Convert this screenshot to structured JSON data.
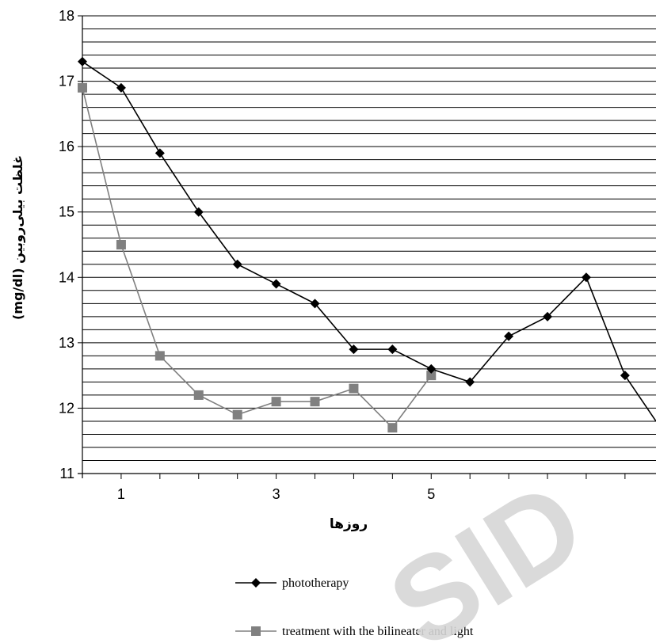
{
  "chart_data": {
    "type": "line",
    "xlabel": "روزها",
    "ylabel": "غلظت بیلی‌روبین (mg/dl)",
    "ylim": [
      11,
      18
    ],
    "yticks": [
      11,
      12,
      13,
      14,
      15,
      16,
      17,
      18
    ],
    "xlim": [
      0.5,
      7.9
    ],
    "xtick_labels": [
      1,
      3,
      5
    ],
    "grid": "horizontal, every 0.2",
    "legend": "bottom",
    "watermark": "SID",
    "series": [
      {
        "name": "phototherapy",
        "color": "#000000",
        "marker": "diamond",
        "x": [
          0.5,
          1,
          1.5,
          2,
          2.5,
          3,
          3.5,
          4,
          4.5,
          5,
          5.5,
          6,
          6.5,
          7,
          7.5,
          7.9
        ],
        "y": [
          17.3,
          16.9,
          15.9,
          15.0,
          14.2,
          13.9,
          13.6,
          12.9,
          12.9,
          12.6,
          12.4,
          13.1,
          13.4,
          14.0,
          12.5,
          11.8
        ]
      },
      {
        "name": "treatment with the bilineater and light",
        "color": "#808080",
        "marker": "square",
        "x": [
          0.5,
          1,
          1.5,
          2,
          2.5,
          3,
          3.5,
          4,
          4.5,
          5
        ],
        "y": [
          16.9,
          14.5,
          12.8,
          12.2,
          11.9,
          12.1,
          12.1,
          12.3,
          11.7,
          12.5
        ]
      }
    ]
  }
}
